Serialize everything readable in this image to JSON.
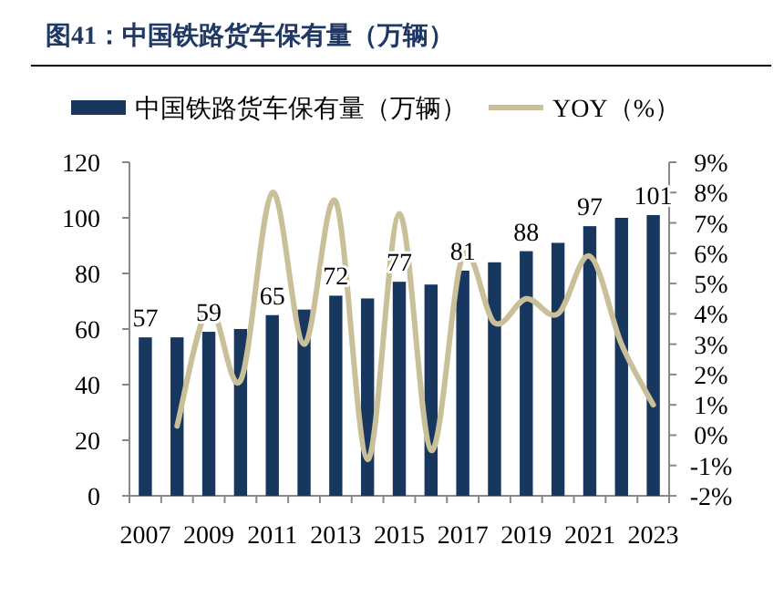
{
  "chart_data": {
    "type": "bar",
    "title": "图41：中国铁路货车保有量（万辆）",
    "categories": [
      "2007",
      null,
      "2009",
      null,
      "2011",
      null,
      "2013",
      null,
      "2015",
      null,
      "2017",
      null,
      "2019",
      null,
      "2021",
      null,
      "2023"
    ],
    "series": [
      {
        "name": "中国铁路货车保有量（万辆）",
        "type": "bar",
        "color": "#17375e",
        "values": [
          57,
          57,
          59,
          60,
          65,
          67,
          72,
          71,
          77,
          76,
          81,
          84,
          88,
          91,
          97,
          100,
          101
        ],
        "value_labels": [
          "57",
          null,
          "59",
          null,
          "65",
          null,
          "72",
          null,
          "77",
          null,
          "81",
          null,
          "88",
          null,
          "97",
          null,
          "101"
        ]
      },
      {
        "name": "YOY（%）",
        "type": "line",
        "axis": "y2",
        "color": "#c9c09a",
        "values": [
          null,
          0.3,
          4.2,
          1.8,
          8.0,
          3.0,
          7.7,
          -0.8,
          7.3,
          -0.5,
          5.9,
          3.7,
          4.5,
          4.0,
          5.9,
          3.0,
          1.0
        ]
      }
    ],
    "ylim": [
      0,
      120
    ],
    "yticks": [
      0,
      20,
      40,
      60,
      80,
      100,
      120
    ],
    "y2lim": [
      -2,
      9
    ],
    "y2ticks": [
      {
        "value": -2,
        "label": "-2%"
      },
      {
        "value": -1,
        "label": "-1%"
      },
      {
        "value": 0,
        "label": "0%"
      },
      {
        "value": 1,
        "label": "1%"
      },
      {
        "value": 2,
        "label": "2%"
      },
      {
        "value": 3,
        "label": "3%"
      },
      {
        "value": 4,
        "label": "4%"
      },
      {
        "value": 5,
        "label": "5%"
      },
      {
        "value": 6,
        "label": "6%"
      },
      {
        "value": 7,
        "label": "7%"
      },
      {
        "value": 8,
        "label": "8%"
      },
      {
        "value": 9,
        "label": "9%"
      }
    ],
    "legend": "top",
    "grid": false
  }
}
